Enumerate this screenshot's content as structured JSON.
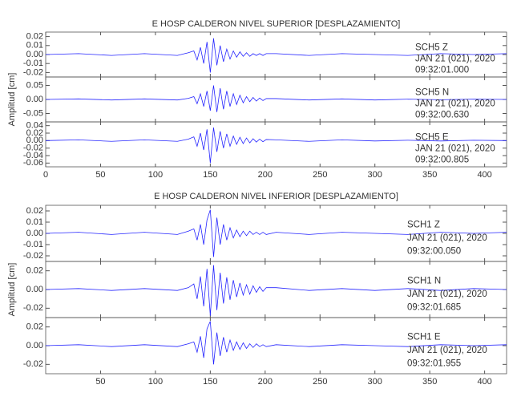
{
  "chart_data": [
    {
      "type": "line",
      "title": "E HOSP CALDERON NIVEL SUPERIOR [DESPLAZAMIENTO]",
      "y_label": "Amplitud [cm]",
      "color": "#2424ff",
      "xlim": [
        0,
        420
      ],
      "xticks": [
        0,
        50,
        100,
        150,
        200,
        250,
        300,
        350,
        400
      ],
      "x": [
        0,
        30,
        60,
        90,
        120,
        130,
        135,
        138,
        141,
        144,
        147,
        150,
        153,
        156,
        159,
        162,
        165,
        168,
        171,
        174,
        177,
        180,
        183,
        186,
        189,
        192,
        195,
        198,
        201,
        210,
        240,
        270,
        300,
        330,
        360,
        390,
        420
      ],
      "panels": [
        {
          "annotation": [
            "SCH5   Z",
            "JAN 21 (021), 2020",
            "09:32:01.000"
          ],
          "ylim": [
            -0.025,
            0.025
          ],
          "yticks": [
            {
              "value": 0.02,
              "label": "0.02"
            },
            {
              "value": 0.01,
              "label": "0.01"
            },
            {
              "value": 0,
              "label": "0.00"
            },
            {
              "value": -0.01,
              "label": "-0.01"
            },
            {
              "value": -0.02,
              "label": "-0.02"
            }
          ],
          "values": [
            0,
            0.001,
            -0.001,
            0.001,
            -0.001,
            0.002,
            0.004,
            -0.006,
            0.008,
            -0.01,
            0.014,
            -0.02,
            0.018,
            -0.012,
            0.01,
            -0.008,
            0.006,
            -0.005,
            0.004,
            -0.003,
            0.003,
            -0.002,
            0.002,
            -0.002,
            0.001,
            -0.001,
            0.001,
            -0.001,
            0.001,
            0.001,
            -0.001,
            0.001,
            0,
            -0.001,
            0.001,
            0,
            0.001
          ]
        },
        {
          "annotation": [
            "SCH5   N",
            "JAN 21 (021), 2020",
            "09:32:00.630"
          ],
          "ylim": [
            -0.08,
            0.08
          ],
          "yticks": [
            {
              "value": 0.05,
              "label": "0.05"
            },
            {
              "value": 0,
              "label": "0.00"
            },
            {
              "value": -0.05,
              "label": "-0.05"
            }
          ],
          "values": [
            0,
            0.002,
            -0.002,
            0.002,
            -0.002,
            0.004,
            0.01,
            -0.015,
            0.02,
            -0.025,
            0.03,
            -0.04,
            0.05,
            -0.045,
            0.04,
            -0.035,
            0.03,
            -0.025,
            0.02,
            -0.018,
            0.015,
            -0.012,
            0.01,
            -0.008,
            0.007,
            -0.006,
            0.005,
            -0.004,
            0.003,
            0.003,
            -0.002,
            0.002,
            -0.002,
            0.001,
            -0.001,
            0.001,
            0
          ]
        },
        {
          "annotation": [
            "SCH5   E",
            "JAN 21 (021), 2020",
            "09:32:00.805"
          ],
          "ylim": [
            -0.07,
            0.05
          ],
          "yticks": [
            {
              "value": 0.04,
              "label": "0.04"
            },
            {
              "value": 0.02,
              "label": "0.02"
            },
            {
              "value": 0,
              "label": "0.00"
            },
            {
              "value": -0.02,
              "label": "-0.02"
            },
            {
              "value": -0.04,
              "label": "-0.04"
            },
            {
              "value": -0.06,
              "label": "-0.06"
            }
          ],
          "values": [
            0,
            0.002,
            -0.002,
            0.002,
            -0.002,
            0.004,
            0.01,
            -0.015,
            0.02,
            -0.025,
            0.03,
            -0.06,
            0.035,
            -0.03,
            0.025,
            -0.02,
            0.018,
            -0.015,
            0.012,
            -0.01,
            0.009,
            -0.008,
            0.007,
            -0.006,
            0.005,
            -0.004,
            0.004,
            -0.003,
            0.003,
            0.002,
            -0.002,
            0.002,
            -0.001,
            0.001,
            -0.001,
            0.001,
            0
          ]
        }
      ]
    },
    {
      "type": "line",
      "title": "E HOSP CALDERON NIVEL INFERIOR [DESPLAZAMIENTO]",
      "y_label": "Amplitud [cm]",
      "color": "#2424ff",
      "xlim": [
        0,
        420
      ],
      "xticks": [
        50,
        100,
        150,
        200,
        250,
        300,
        350,
        400
      ],
      "x": [
        0,
        30,
        60,
        90,
        120,
        130,
        135,
        138,
        141,
        144,
        147,
        150,
        153,
        156,
        159,
        162,
        165,
        168,
        171,
        174,
        177,
        180,
        183,
        186,
        189,
        192,
        195,
        198,
        201,
        210,
        240,
        270,
        300,
        330,
        360,
        390,
        420
      ],
      "panels": [
        {
          "annotation": [
            "SCH1   Z",
            "JAN 21 (021), 2020",
            "09:32:00.050"
          ],
          "ylim": [
            -0.025,
            0.025
          ],
          "yticks": [
            {
              "value": 0.02,
              "label": "0.02"
            },
            {
              "value": 0.01,
              "label": "0.01"
            },
            {
              "value": 0,
              "label": "0.00"
            },
            {
              "value": -0.01,
              "label": "-0.01"
            },
            {
              "value": -0.02,
              "label": "-0.02"
            }
          ],
          "values": [
            0,
            0.001,
            -0.001,
            0.001,
            -0.001,
            0.002,
            0.004,
            -0.006,
            0.008,
            -0.01,
            0.012,
            0.021,
            -0.021,
            0.014,
            -0.01,
            0.008,
            -0.006,
            0.005,
            -0.004,
            0.003,
            -0.003,
            0.002,
            -0.002,
            0.002,
            -0.001,
            0.001,
            -0.001,
            0.001,
            -0.001,
            0.001,
            -0.001,
            0.001,
            0,
            -0.001,
            0.001,
            0,
            0.001
          ]
        },
        {
          "annotation": [
            "SCH1   N",
            "JAN 21 (021), 2020",
            "09:32:01.685"
          ],
          "ylim": [
            -0.03,
            0.03
          ],
          "yticks": [
            {
              "value": 0.02,
              "label": "0.02"
            },
            {
              "value": 0,
              "label": "0.00"
            },
            {
              "value": -0.02,
              "label": "-0.02"
            }
          ],
          "values": [
            0,
            0.001,
            -0.001,
            0.001,
            -0.001,
            0.002,
            0.006,
            -0.01,
            0.014,
            -0.018,
            0.022,
            -0.028,
            0.026,
            -0.022,
            0.018,
            -0.015,
            0.013,
            -0.011,
            0.01,
            -0.008,
            0.007,
            -0.006,
            0.005,
            -0.005,
            0.004,
            -0.003,
            0.003,
            -0.002,
            0.002,
            0.002,
            -0.001,
            0.001,
            -0.001,
            0.001,
            -0.001,
            0.001,
            0
          ]
        },
        {
          "annotation": [
            "SCH1   E",
            "JAN 21 (021), 2020",
            "09:32:01.955"
          ],
          "ylim": [
            -0.03,
            0.03
          ],
          "yticks": [
            {
              "value": 0.02,
              "label": "0.02"
            },
            {
              "value": 0,
              "label": "0.00"
            },
            {
              "value": -0.02,
              "label": "-0.02"
            }
          ],
          "values": [
            0,
            0.001,
            -0.001,
            0.001,
            -0.001,
            0.002,
            0.004,
            -0.007,
            0.01,
            -0.013,
            0.018,
            0.026,
            -0.02,
            0.014,
            -0.011,
            0.009,
            -0.007,
            0.006,
            -0.005,
            0.004,
            -0.004,
            0.003,
            -0.003,
            0.002,
            -0.002,
            0.002,
            -0.001,
            0.001,
            -0.001,
            0.001,
            -0.001,
            0.001,
            0,
            -0.001,
            0.001,
            0,
            0.001
          ]
        }
      ]
    }
  ]
}
